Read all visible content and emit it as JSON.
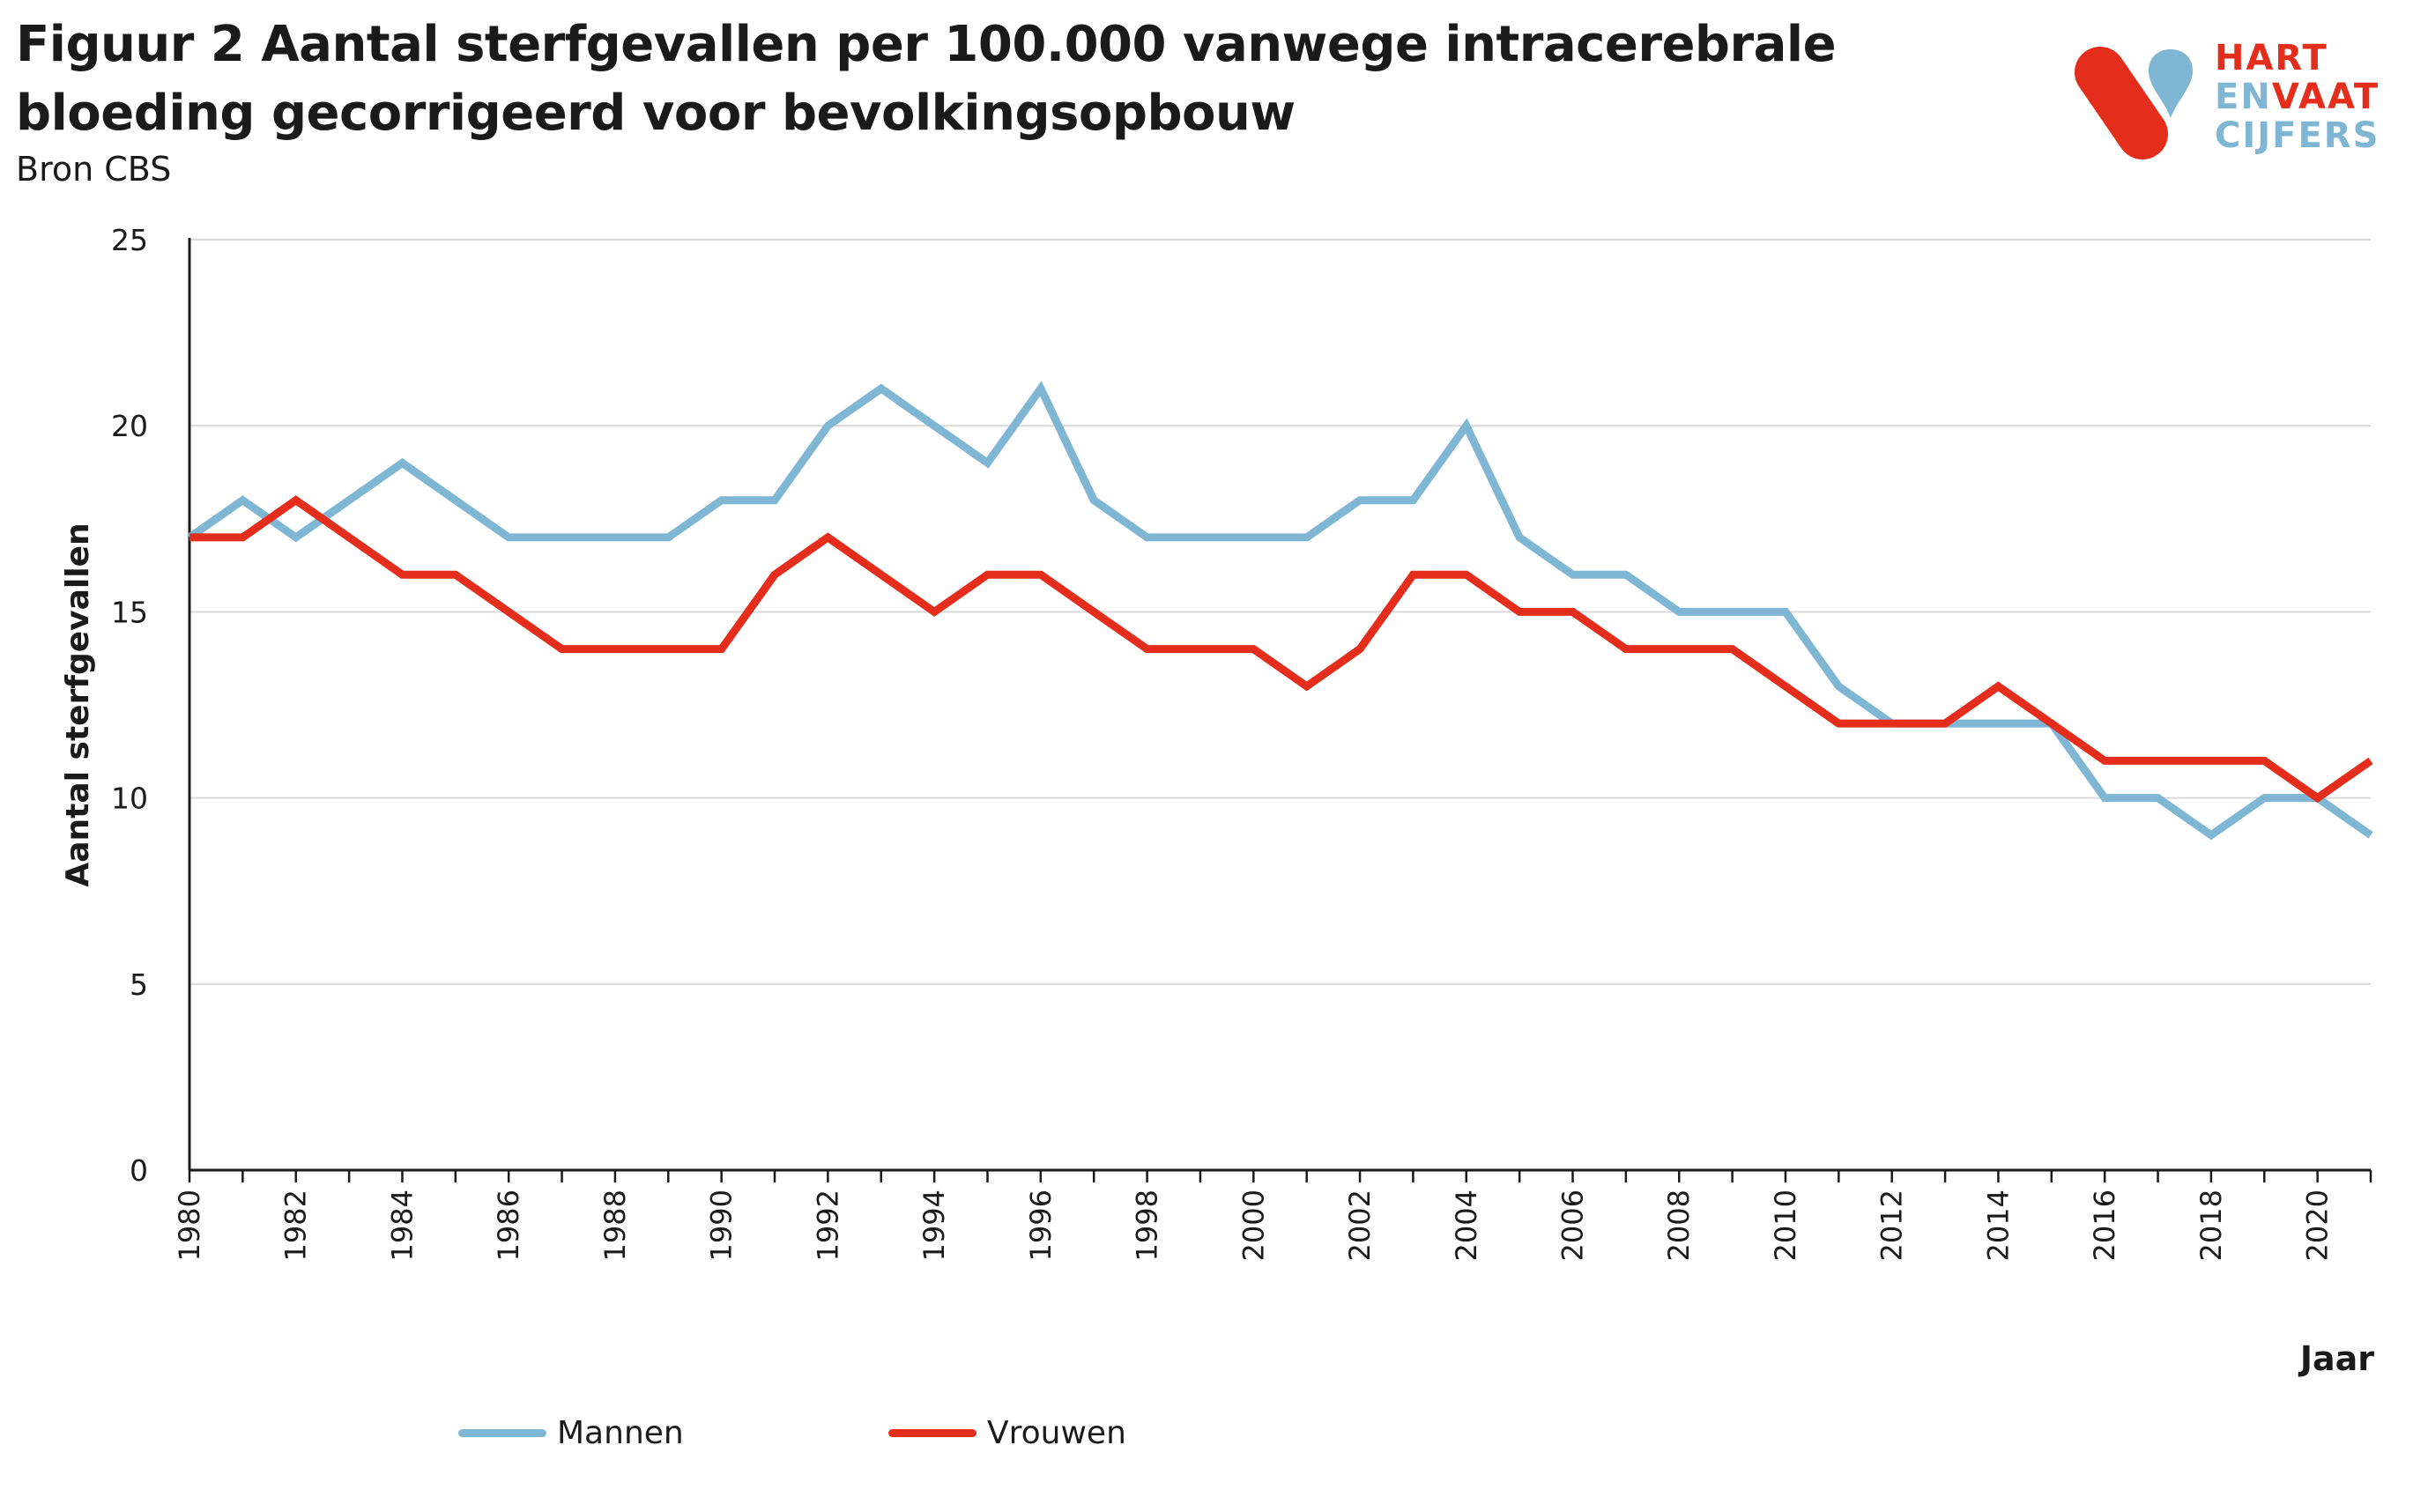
{
  "header": {
    "title": "Figuur 2 Aantal sterfgevallen per 100.000 vanwege intracerebrale bloeding gecorrigeerd voor bevolkingsopbouw",
    "source": "Bron CBS"
  },
  "logo": {
    "line1": "HART",
    "line2a": "EN",
    "line2b": "VAAT",
    "line3": "CIJFERS",
    "icon": "heart-and-vessel-logo-icon"
  },
  "colors": {
    "mannen": "#7fb6d4",
    "vrouwen": "#e52d1b",
    "grid": "#d9d9d9",
    "axis": "#1a1a1a"
  },
  "chart_data": {
    "type": "line",
    "xlabel": "Jaar",
    "ylabel": "Aantal sterfgevallen",
    "ylim": [
      0,
      25
    ],
    "yticks": [
      0,
      5,
      10,
      15,
      20,
      25
    ],
    "x": [
      1980,
      1981,
      1982,
      1983,
      1984,
      1985,
      1986,
      1987,
      1988,
      1989,
      1990,
      1991,
      1992,
      1993,
      1994,
      1995,
      1996,
      1997,
      1998,
      1999,
      2000,
      2001,
      2002,
      2003,
      2004,
      2005,
      2006,
      2007,
      2008,
      2009,
      2010,
      2011,
      2012,
      2013,
      2014,
      2015,
      2016,
      2017,
      2018,
      2019,
      2020,
      2021
    ],
    "xtick_labels": [
      1980,
      1982,
      1984,
      1986,
      1988,
      1990,
      1992,
      1994,
      1996,
      1998,
      2000,
      2002,
      2004,
      2006,
      2008,
      2010,
      2012,
      2014,
      2016,
      2018,
      2020
    ],
    "grid": true,
    "legend_position": "bottom",
    "series": [
      {
        "name": "Mannen",
        "color": "#7fb6d4",
        "values": [
          17,
          18,
          17,
          18,
          19,
          18,
          17,
          17,
          17,
          17,
          18,
          18,
          20,
          21,
          20,
          19,
          21,
          18,
          17,
          17,
          17,
          17,
          18,
          18,
          20,
          17,
          16,
          16,
          15,
          15,
          15,
          13,
          12,
          12,
          12,
          12,
          10,
          10,
          9,
          10,
          10,
          9
        ]
      },
      {
        "name": "Vrouwen",
        "color": "#e52d1b",
        "values": [
          17,
          17,
          18,
          17,
          16,
          16,
          15,
          14,
          14,
          14,
          14,
          16,
          17,
          16,
          15,
          16,
          16,
          15,
          14,
          14,
          14,
          13,
          14,
          16,
          16,
          15,
          15,
          14,
          14,
          14,
          13,
          12,
          12,
          12,
          13,
          12,
          11,
          11,
          11,
          11,
          10,
          11
        ]
      }
    ]
  }
}
